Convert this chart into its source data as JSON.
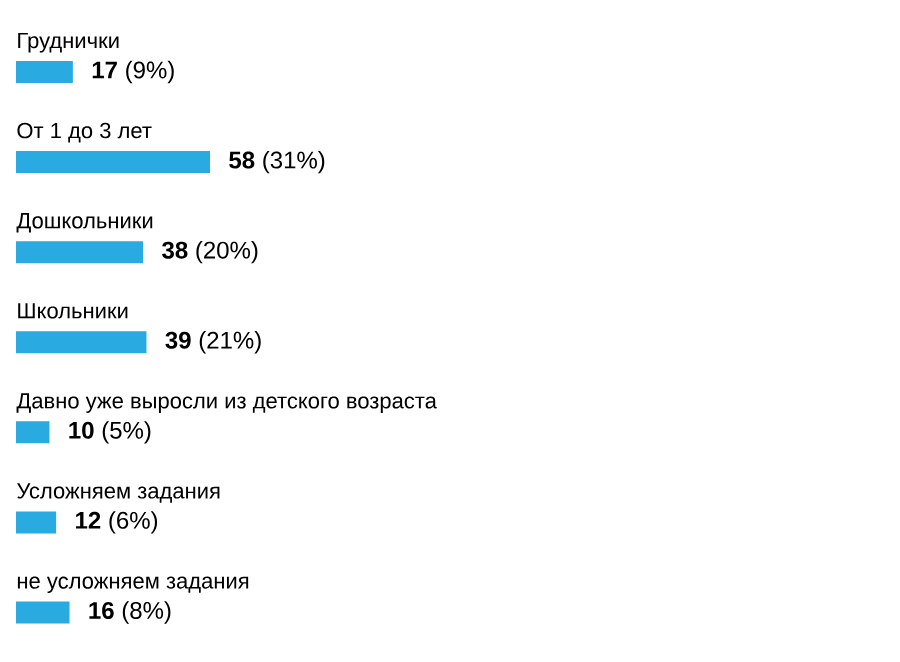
{
  "chart_data": {
    "type": "bar",
    "orientation": "horizontal",
    "color": "#29abe2",
    "categories": [
      "Груднички",
      "От 1 до 3 лет",
      "Дошкольники",
      "Школьники",
      "Давно уже выросли из детского возраста",
      "Усложняем задания",
      "не усложняем задания"
    ],
    "values": [
      17,
      58,
      38,
      39,
      10,
      12,
      16
    ],
    "value_labels": [
      "**17** (9%)",
      "**58** (31%)",
      "**38** (20%)",
      "**39** (21%)",
      "**10** (5%)",
      "**12** (6%)",
      "**16** (8%)"
    ]
  }
}
